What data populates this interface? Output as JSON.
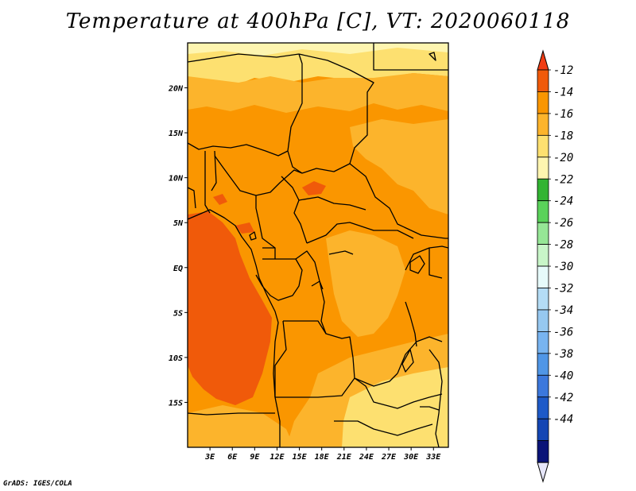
{
  "title": "Temperature at 400hPa [C], VT: 2020060118",
  "credit": "GrADS: IGES/COLA",
  "map": {
    "lon_range": [
      0,
      35
    ],
    "lat_range": [
      -20,
      25
    ],
    "lat_ticks": [
      {
        "value": 20,
        "label": "20N"
      },
      {
        "value": 15,
        "label": "15N"
      },
      {
        "value": 10,
        "label": "10N"
      },
      {
        "value": 5,
        "label": "5N"
      },
      {
        "value": 0,
        "label": "EQ"
      },
      {
        "value": -5,
        "label": "5S"
      },
      {
        "value": -10,
        "label": "10S"
      },
      {
        "value": -15,
        "label": "15S"
      }
    ],
    "lon_ticks": [
      {
        "value": 3,
        "label": "3E"
      },
      {
        "value": 6,
        "label": "6E"
      },
      {
        "value": 9,
        "label": "9E"
      },
      {
        "value": 12,
        "label": "12E"
      },
      {
        "value": 15,
        "label": "15E"
      },
      {
        "value": 18,
        "label": "18E"
      },
      {
        "value": 21,
        "label": "21E"
      },
      {
        "value": 24,
        "label": "24E"
      },
      {
        "value": 27,
        "label": "27E"
      },
      {
        "value": 30,
        "label": "30E"
      },
      {
        "value": 33,
        "label": "33E"
      }
    ]
  },
  "colorbar": {
    "top_color": "#f03c14",
    "bottom_color": "#e6e6fa",
    "bins": [
      {
        "color": "#f05a0a"
      },
      {
        "color": "#fa9600"
      },
      {
        "color": "#fcb42c"
      },
      {
        "color": "#fde070"
      },
      {
        "color": "#fef5b0"
      },
      {
        "color": "#32b432"
      },
      {
        "color": "#5ad25a"
      },
      {
        "color": "#96e696"
      },
      {
        "color": "#c8f5c8"
      },
      {
        "color": "#e6fafa"
      },
      {
        "color": "#b4dcf5"
      },
      {
        "color": "#96c8f0"
      },
      {
        "color": "#78b4f0"
      },
      {
        "color": "#5096e6"
      },
      {
        "color": "#3c78dc"
      },
      {
        "color": "#1e5ac8"
      },
      {
        "color": "#1446b4"
      },
      {
        "color": "#0a1478"
      }
    ],
    "labels": [
      "-12",
      "-14",
      "-16",
      "-18",
      "-20",
      "-22",
      "-24",
      "-26",
      "-28",
      "-30",
      "-32",
      "-34",
      "-36",
      "-38",
      "-40",
      "-42",
      "-44"
    ]
  },
  "field_colors": {
    "warmest": "#f05a0a",
    "warm": "#fa9600",
    "mid": "#fcb42c",
    "cool": "#fde070",
    "coolest": "#fef5b0"
  }
}
